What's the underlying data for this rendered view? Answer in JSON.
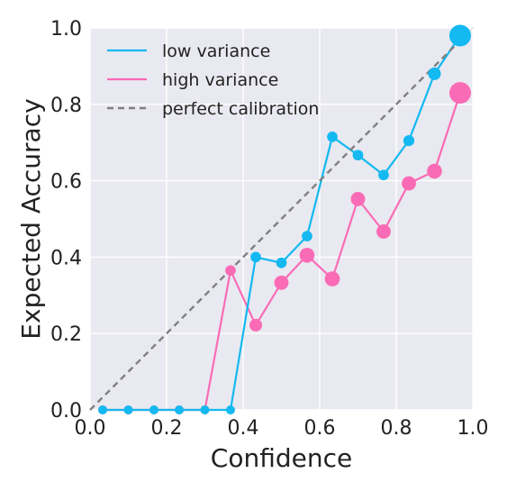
{
  "chart_data": {
    "type": "line",
    "xlabel": "Confidence",
    "ylabel": "Expected Accuracy",
    "xlim": [
      0.0,
      1.0
    ],
    "ylim": [
      0.0,
      1.0
    ],
    "x_ticks": [
      "0.0",
      "0.2",
      "0.4",
      "0.6",
      "0.8",
      "1.0"
    ],
    "y_ticks": [
      "0.0",
      "0.2",
      "0.4",
      "0.6",
      "0.8",
      "1.0"
    ],
    "grid": true,
    "legend_position": "top-left",
    "background_color": "#e9e9f1",
    "series": [
      {
        "name": "low variance",
        "color": "#13b9f0",
        "x": [
          0.033,
          0.1,
          0.167,
          0.233,
          0.3,
          0.367,
          0.433,
          0.5,
          0.567,
          0.633,
          0.7,
          0.767,
          0.833,
          0.9,
          0.967
        ],
        "y": [
          0.0,
          0.0,
          0.0,
          0.0,
          0.0,
          0.0,
          0.4,
          0.385,
          0.455,
          0.715,
          0.667,
          0.615,
          0.705,
          0.88,
          0.98
        ],
        "marker_weight": [
          0.05,
          0.05,
          0.05,
          0.05,
          0.05,
          0.05,
          0.1,
          0.1,
          0.1,
          0.1,
          0.1,
          0.1,
          0.12,
          0.2,
          1.0
        ]
      },
      {
        "name": "high variance",
        "color": "#f96cb5",
        "x": [
          0.033,
          0.1,
          0.167,
          0.233,
          0.3,
          0.367,
          0.433,
          0.5,
          0.567,
          0.633,
          0.7,
          0.767,
          0.833,
          0.9,
          0.967
        ],
        "y": [
          0.0,
          0.0,
          0.0,
          0.0,
          0.0,
          0.365,
          0.222,
          0.333,
          0.405,
          0.343,
          0.552,
          0.467,
          0.593,
          0.625,
          0.83
        ],
        "marker_weight": [
          0.05,
          0.05,
          0.05,
          0.05,
          0.05,
          0.1,
          0.2,
          0.3,
          0.35,
          0.35,
          0.3,
          0.3,
          0.3,
          0.35,
          1.0
        ]
      },
      {
        "name": "perfect calibration",
        "color": "#808080",
        "style": "dashed",
        "x": [
          0.0,
          1.0
        ],
        "y": [
          0.0,
          1.0
        ]
      }
    ]
  }
}
